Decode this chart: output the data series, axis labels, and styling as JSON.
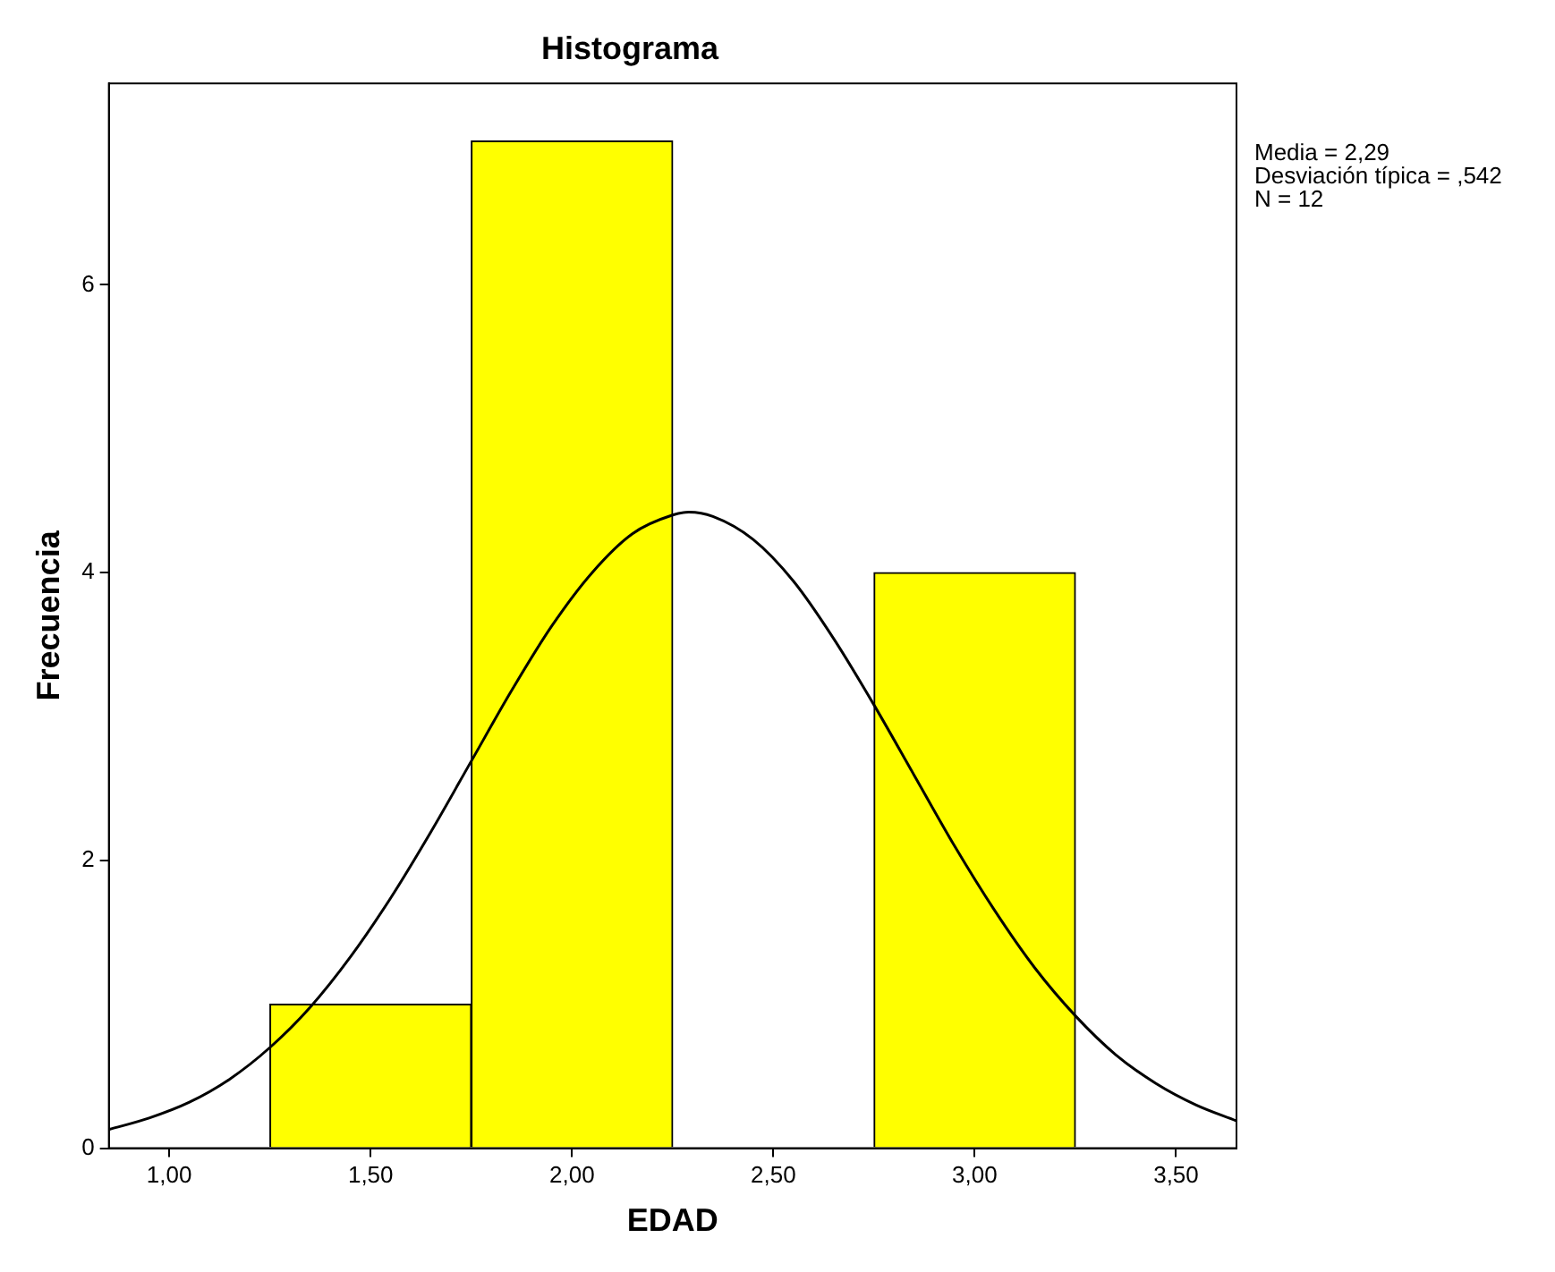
{
  "chart_data": {
    "type": "histogram",
    "title": "Histograma",
    "xlabel": "EDAD",
    "ylabel": "Frecuencia",
    "bins": [
      1.25,
      1.75,
      2.25,
      2.75,
      3.25
    ],
    "values": [
      1,
      7,
      0,
      4
    ],
    "color": "#ffff00",
    "series": [
      {
        "type": "line",
        "color": "#000000",
        "marker": "none",
        "x": [
          0.85,
          0.95,
          1.05,
          1.15,
          1.25,
          1.35,
          1.45,
          1.55,
          1.65,
          1.75,
          1.85,
          1.95,
          2.05,
          2.15,
          2.25,
          2.29,
          2.35,
          2.45,
          2.55,
          2.65,
          2.75,
          2.85,
          2.95,
          3.05,
          3.15,
          3.25,
          3.35,
          3.45,
          3.55,
          3.65
        ],
        "values": [
          0.13,
          0.21,
          0.32,
          0.48,
          0.7,
          0.98,
          1.33,
          1.74,
          2.2,
          2.69,
          3.18,
          3.63,
          4.0,
          4.27,
          4.4,
          4.42,
          4.39,
          4.23,
          3.94,
          3.54,
          3.08,
          2.59,
          2.1,
          1.65,
          1.25,
          0.92,
          0.65,
          0.45,
          0.3,
          0.19
        ]
      }
    ],
    "xlim": [
      0.85,
      3.65
    ],
    "xticks": [
      {
        "value": 1,
        "label": "1,00"
      },
      {
        "value": 1.5,
        "label": "1,50"
      },
      {
        "value": 2,
        "label": "2,00"
      },
      {
        "value": 2.5,
        "label": "2,50"
      },
      {
        "value": 3,
        "label": "3,00"
      },
      {
        "value": 3.5,
        "label": "3,50"
      }
    ],
    "ylim": [
      0,
      7.4
    ],
    "yticks": [
      0,
      2,
      4,
      6
    ],
    "grid": false,
    "legend": false,
    "annotations": [
      "Media = 2,29",
      "Desviación típica = ,542",
      "N = 12"
    ]
  }
}
